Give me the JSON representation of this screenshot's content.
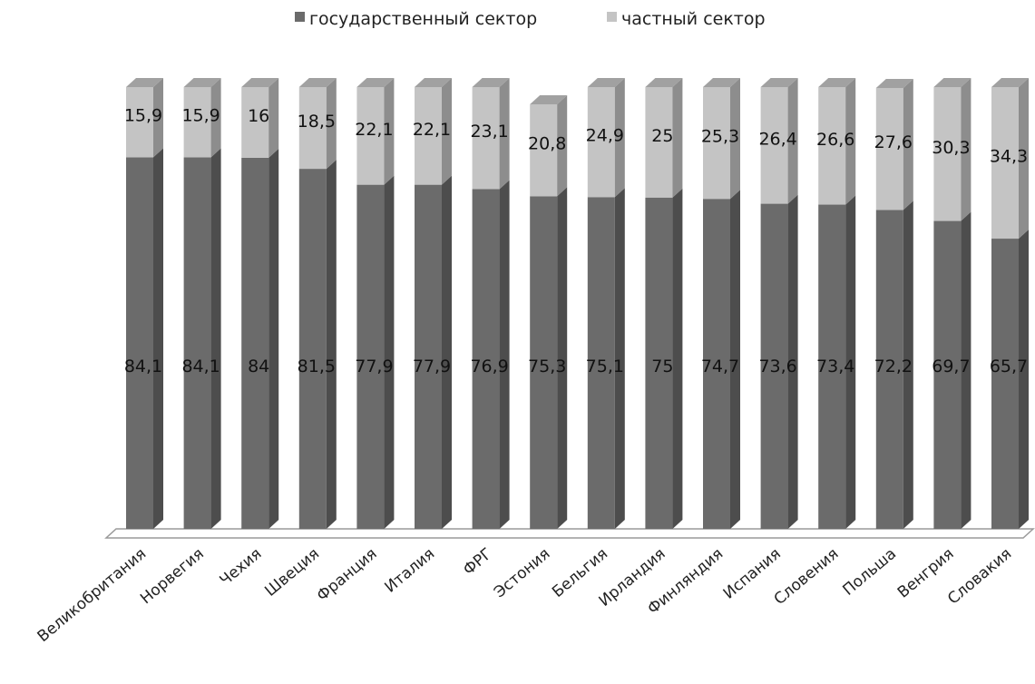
{
  "chart_data": {
    "type": "bar",
    "stacked": true,
    "three_d": true,
    "legend_position": "top",
    "grid": false,
    "ylim": [
      0,
      100
    ],
    "categories": [
      "Великобритания",
      "Норвегия",
      "Чехия",
      "Швеция",
      "Франция",
      "Италия",
      "ФРГ",
      "Эстония",
      "Бельгия",
      "Ирландия",
      "Финляндия",
      "Испания",
      "Словения",
      "Польша",
      "Венгрия",
      "Словакия"
    ],
    "series": [
      {
        "name": "государственный сектор",
        "color": "#6b6b6b",
        "values": [
          84.1,
          84.1,
          84,
          81.5,
          77.9,
          77.9,
          76.9,
          75.3,
          75.1,
          75,
          74.7,
          73.6,
          73.4,
          72.2,
          69.7,
          65.7
        ],
        "labels": [
          "84,1",
          "84,1",
          "84",
          "81,5",
          "77,9",
          "77,9",
          "76,9",
          "75,3",
          "75,1",
          "75",
          "74,7",
          "73,6",
          "73,4",
          "72,2",
          "69,7",
          "65,7"
        ]
      },
      {
        "name": "частный сектор",
        "color": "#c4c4c4",
        "values": [
          15.9,
          15.9,
          16,
          18.5,
          22.1,
          22.1,
          23.1,
          20.8,
          24.9,
          25,
          25.3,
          26.4,
          26.6,
          27.6,
          30.3,
          34.3
        ],
        "labels": [
          "15,9",
          "15,9",
          "16",
          "18,5",
          "22,1",
          "22,1",
          "23,1",
          "20,8",
          "24,9",
          "25",
          "25,3",
          "26,4",
          "26,6",
          "27,6",
          "30,3",
          "34,3"
        ]
      }
    ]
  }
}
